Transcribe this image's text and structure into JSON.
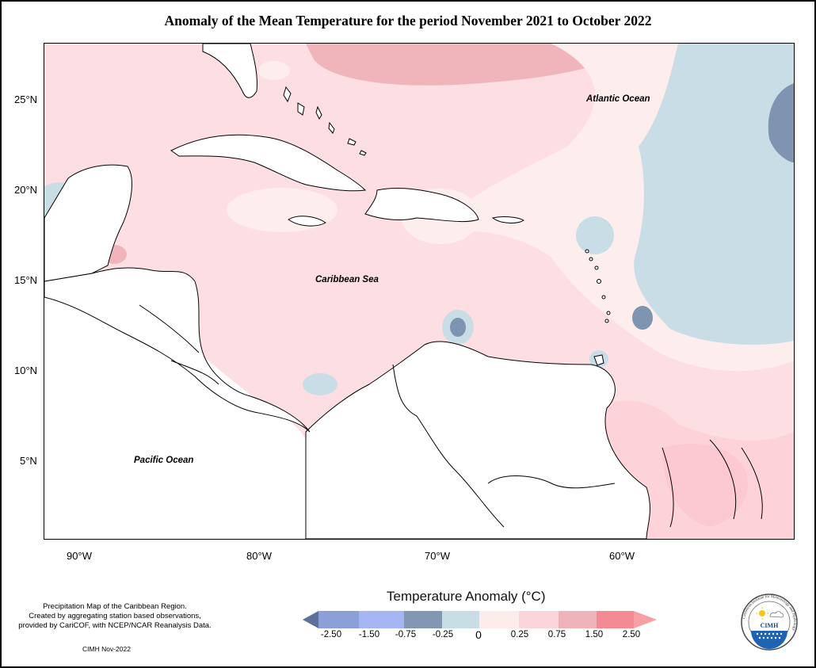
{
  "title": "Anomaly of the Mean Temperature for the period November 2021 to October 2022",
  "map": {
    "lat_labels": [
      "25°N",
      "20°N",
      "15°N",
      "10°N",
      "5°N"
    ],
    "lon_labels": [
      "90°W",
      "80°W",
      "70°W",
      "60°W"
    ],
    "region_labels": {
      "atlantic": "Atlantic Ocean",
      "caribbean": "Caribbean Sea",
      "pacific": "Pacific Ocean"
    }
  },
  "legend": {
    "title": "Temperature Anomaly (°C)",
    "ticks": [
      "-2.50",
      "-1.50",
      "-0.75",
      "-0.25",
      "0",
      "0.25",
      "0.75",
      "1.50",
      "2.50"
    ],
    "colors": [
      "#5e6f9a",
      "#8b9fd8",
      "#a6b6f5",
      "#8197b4",
      "#c9dde6",
      "#fdeceb",
      "#fcd5da",
      "#eeb4ba",
      "#f48a93",
      "#f6a0a6"
    ]
  },
  "footnote": {
    "line1": "Precipitation Map of the Caribbean Region.",
    "line2": "Created by aggregating station based observations,",
    "line3": "provided by CariCOF, with NCEP/NCAR Reanalysis Data.",
    "credit": "CIMH Nov-2022"
  },
  "logo": {
    "text": "CIMH",
    "ring_text": "Caribbean Institute for Meteorology and Hydrology"
  }
}
